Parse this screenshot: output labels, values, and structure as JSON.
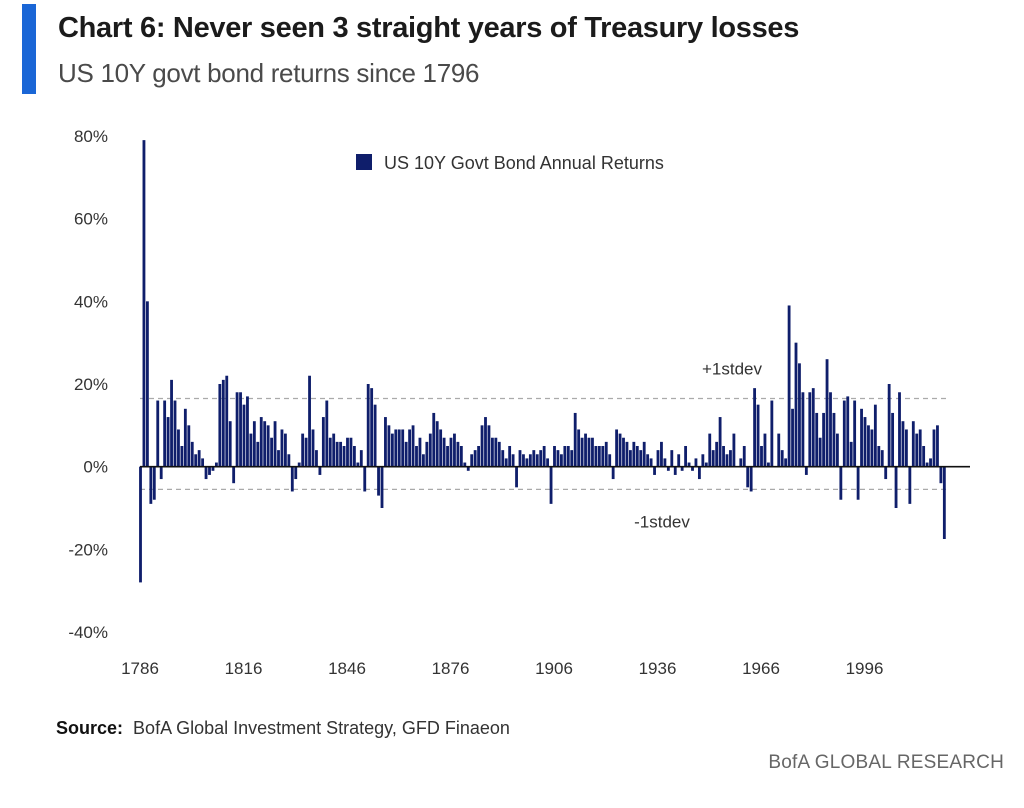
{
  "header": {
    "title": "Chart 6: Never seen 3 straight years of Treasury losses",
    "subtitle": "US 10Y govt bond returns since 1796"
  },
  "footer": {
    "source_label": "Source:",
    "source_text": "BofA Global Investment Strategy, GFD Finaeon",
    "brand": "BofA GLOBAL RESEARCH"
  },
  "colors": {
    "accent": "#1a66d6",
    "bar": "#0f1e6b",
    "highlight": "#e01e1e",
    "refline": "#aaaaaa"
  },
  "chart_data": {
    "type": "bar",
    "title": "Chart 6: Never seen 3 straight years of Treasury losses",
    "subtitle": "US 10Y govt bond returns since 1796",
    "xlabel": "",
    "ylabel": "",
    "x_ticks": [
      "1786",
      "1816",
      "1846",
      "1876",
      "1906",
      "1936",
      "1966",
      "1996"
    ],
    "x_tick_values": [
      1786,
      1816,
      1846,
      1876,
      1906,
      1936,
      1966,
      1996
    ],
    "xlim": [
      1786,
      2026
    ],
    "y_ticks": [
      "80%",
      "60%",
      "40%",
      "20%",
      "0%",
      "-20%",
      "-40%"
    ],
    "y_tick_values": [
      80,
      60,
      40,
      20,
      0,
      -20,
      -40
    ],
    "ylim": [
      -40,
      80
    ],
    "legend": {
      "label": "US 10Y Govt Bond Annual Returns",
      "position": "top-center"
    },
    "reference_lines": [
      {
        "label": "+1stdev",
        "value": 16.5
      },
      {
        "label": "-1stdev",
        "value": -5.5
      }
    ],
    "highlight": {
      "year": 2022,
      "value": -17.5
    },
    "series": [
      {
        "name": "US 10Y Govt Bond Annual Returns",
        "start_year": 1786,
        "values": [
          -28,
          79,
          40,
          -9,
          -8,
          16,
          -3,
          16,
          12,
          21,
          16,
          9,
          5,
          14,
          10,
          6,
          3,
          4,
          2,
          -3,
          -2,
          -1,
          1,
          20,
          21,
          22,
          11,
          -4,
          18,
          18,
          15,
          17,
          8,
          11,
          6,
          12,
          11,
          10,
          7,
          11,
          4,
          9,
          8,
          3,
          -6,
          -3,
          1,
          8,
          7,
          22,
          9,
          4,
          -2,
          12,
          16,
          7,
          8,
          6,
          6,
          5,
          7,
          7,
          5,
          1,
          4,
          -6,
          20,
          19,
          15,
          -7,
          -10,
          12,
          10,
          8,
          9,
          9,
          9,
          6,
          9,
          10,
          5,
          7,
          3,
          6,
          8,
          13,
          11,
          9,
          7,
          5,
          7,
          8,
          6,
          5,
          1,
          -1,
          3,
          4,
          5,
          10,
          12,
          10,
          7,
          7,
          6,
          4,
          2,
          5,
          3,
          -5,
          4,
          3,
          2,
          3,
          4,
          3,
          4,
          5,
          2,
          -9,
          5,
          4,
          3,
          5,
          5,
          4,
          13,
          9,
          7,
          8,
          7,
          7,
          5,
          5,
          5,
          6,
          3,
          -3,
          9,
          8,
          7,
          6,
          4,
          6,
          5,
          4,
          6,
          3,
          2,
          -2,
          4,
          6,
          2,
          -1,
          4,
          -2,
          3,
          -1,
          5,
          1,
          -1,
          2,
          -3,
          3,
          1,
          8,
          4,
          6,
          12,
          5,
          3,
          4,
          8,
          0,
          2,
          5,
          -5,
          -6,
          19,
          15,
          5,
          8,
          1,
          16,
          0,
          8,
          4,
          2,
          39,
          14,
          30,
          25,
          18,
          -2,
          18,
          19,
          13,
          7,
          13,
          26,
          18,
          13,
          8,
          -8,
          16,
          17,
          6,
          16,
          -8,
          14,
          12,
          10,
          9,
          15,
          5,
          4,
          -3,
          20,
          13,
          -10,
          18,
          11,
          9,
          -9,
          11,
          8,
          9,
          5,
          1,
          2,
          9,
          10,
          -4,
          -17.5
        ]
      }
    ]
  }
}
